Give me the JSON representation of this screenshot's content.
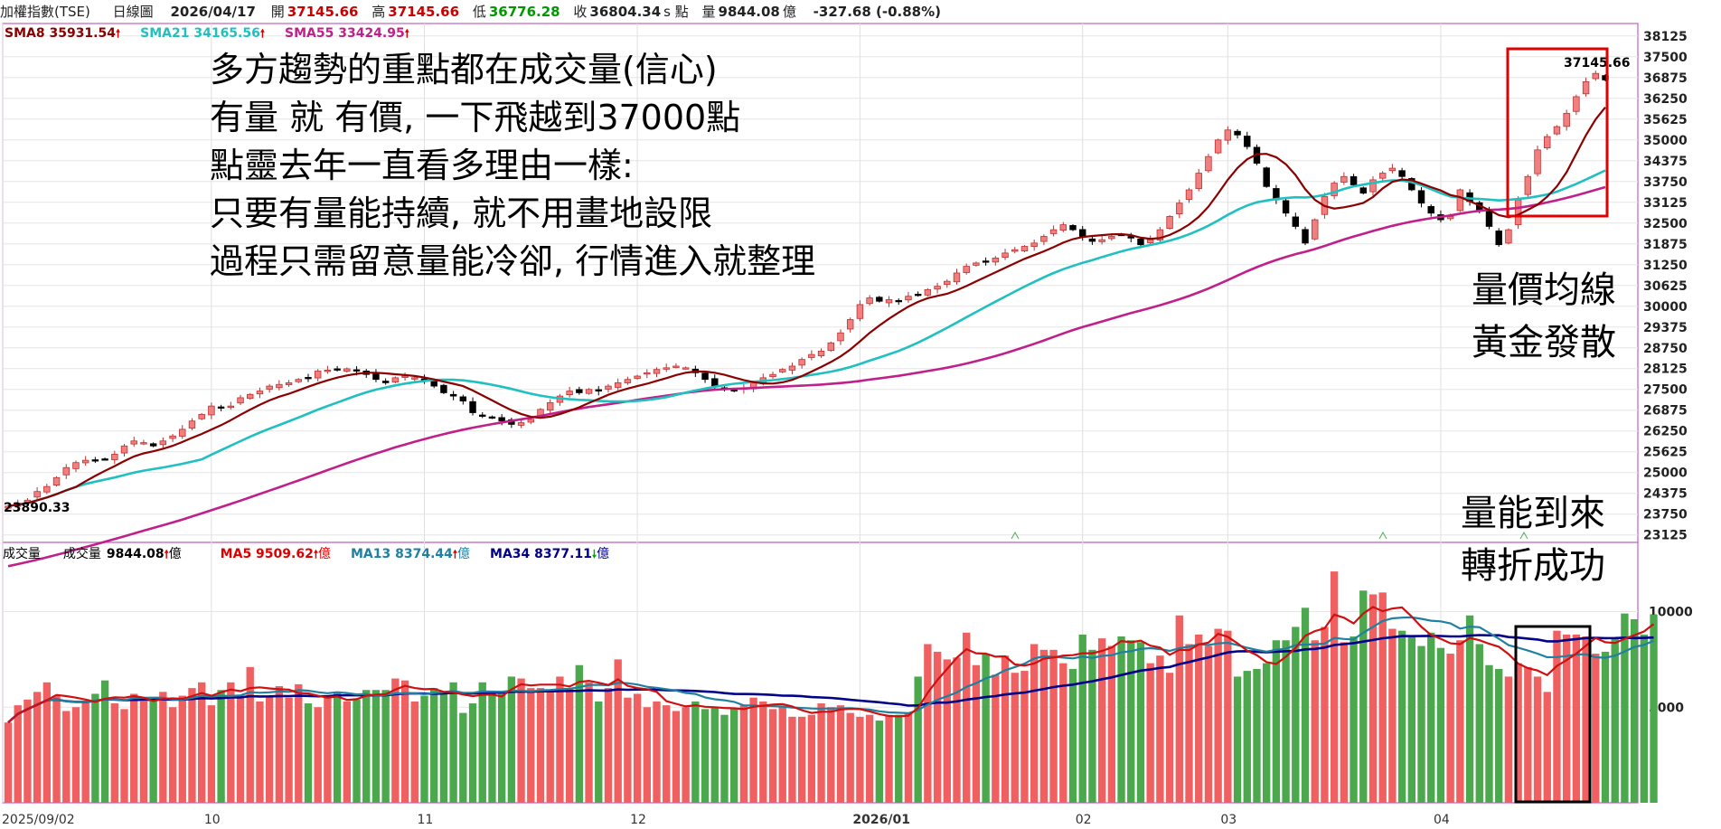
{
  "header": {
    "symbol": "加權指數(TSE)",
    "period": "日線圖",
    "date": "2026/04/17",
    "open_label": "開",
    "open": "37145.66",
    "high_label": "高",
    "high": "37145.66",
    "low_label": "低",
    "low": "36776.28",
    "close_label": "收",
    "close": "36804.34",
    "close_unit": "s 點",
    "vol_label": "量",
    "vol": "9844.08",
    "vol_unit": "億",
    "change": "-327.68 (-0.88%)"
  },
  "price_legend": [
    {
      "label": "SMA8 35931.54",
      "arrow": "up",
      "color": "#8b0000"
    },
    {
      "label": "SMA21 34165.56",
      "arrow": "up",
      "color": "#20c0c0"
    },
    {
      "label": "SMA55 33424.95",
      "arrow": "up",
      "color": "#c0208a"
    }
  ],
  "volume_legend": {
    "title": "成交量",
    "value_label": "成交量",
    "value": "9844.08",
    "value_unit": "億",
    "items": [
      {
        "label": "MA5 9509.62",
        "arrow": "up",
        "unit": "億",
        "color": "#d00"
      },
      {
        "label": "MA13 8374.44",
        "arrow": "up",
        "unit": "億",
        "color": "#2080a0"
      },
      {
        "label": "MA34 8377.11",
        "arrow": "down",
        "unit": "億",
        "color": "#00008b"
      }
    ]
  },
  "annotations": {
    "main_lines": [
      "多方趨勢的重點都在成交量(信心)",
      "有量 就 有價, 一下飛越到37000點",
      "點靈去年一直看多理由一樣:",
      "只要有量能持續, 就不用畫地設限",
      "過程只需留意量能冷卻, 行情進入就整理"
    ],
    "right_top": [
      "量價均線",
      "黃金發散"
    ],
    "right_bottom": [
      "量能到來",
      "轉折成功"
    ]
  },
  "chart_data": [
    {
      "type": "candlestick",
      "title": "加權指數(TSE) 日線圖",
      "y_ticks": [
        38125,
        37500,
        36875,
        36250,
        35625,
        35000,
        34375,
        33750,
        33125,
        32500,
        31875,
        31250,
        30625,
        30000,
        29375,
        28750,
        28125,
        27500,
        26875,
        26250,
        25625,
        25000,
        24375,
        23750,
        23125
      ],
      "ylim": [
        22900,
        38500
      ],
      "x_labels": [
        "2025/09/02",
        "10",
        "11",
        "12",
        "2026/01",
        "02",
        "03",
        "04"
      ],
      "x_label_positions": [
        0,
        21,
        43,
        65,
        88,
        111,
        126,
        148
      ],
      "low_label": "23890.33",
      "high_label": "37145.66",
      "close": [
        23990,
        24080,
        24170,
        24430,
        24580,
        24850,
        25150,
        25300,
        25370,
        25350,
        25400,
        25550,
        25800,
        25950,
        25900,
        25800,
        25950,
        26100,
        26300,
        26550,
        26750,
        27000,
        26950,
        27000,
        27250,
        27350,
        27450,
        27600,
        27650,
        27700,
        27800,
        27850,
        28050,
        28080,
        28100,
        28120,
        28050,
        27950,
        27800,
        27700,
        27850,
        27900,
        27850,
        27750,
        27600,
        27400,
        27300,
        27150,
        26800,
        26700,
        26650,
        26550,
        26450,
        26500,
        26600,
        26900,
        27100,
        27300,
        27450,
        27400,
        27500,
        27450,
        27600,
        27700,
        27800,
        27900,
        28000,
        28100,
        28150,
        28200,
        28150,
        28000,
        27800,
        27600,
        27500,
        27450,
        27550,
        27700,
        27850,
        27950,
        28100,
        28200,
        28400,
        28550,
        28650,
        28900,
        29200,
        29600,
        30050,
        30250,
        30150,
        30200,
        30150,
        30300,
        30350,
        30500,
        30600,
        30750,
        31000,
        31200,
        31300,
        31350,
        31450,
        31600,
        31700,
        31800,
        31900,
        32100,
        32300,
        32450,
        32300,
        32100,
        31950,
        32000,
        32100,
        32150,
        32050,
        31850,
        32000,
        32300,
        32700,
        33100,
        33500,
        34000,
        34500,
        35000,
        35300,
        35150,
        34800,
        34300,
        33600,
        33200,
        32800,
        32400,
        31900,
        32600,
        33300,
        33700,
        33900,
        33650,
        33400,
        33800,
        34000,
        34150,
        33900,
        33500,
        33100,
        32800,
        32600,
        32700,
        33500,
        33150,
        32900,
        32400,
        31850,
        32300,
        33200,
        33900,
        34700,
        35100,
        35400,
        35800,
        36300,
        36750,
        37000,
        36804
      ]
    },
    {
      "type": "bar",
      "title": "成交量",
      "y_ticks": [
        10000,
        5000
      ],
      "ylim": [
        0,
        12200
      ],
      "x_labels": [
        "2025/09/02",
        "10",
        "11",
        "12",
        "2026/01",
        "02",
        "03",
        "04"
      ],
      "values": [
        4200,
        5100,
        5400,
        5800,
        6300,
        5600,
        4800,
        5000,
        5300,
        5700,
        6400,
        5200,
        4900,
        5700,
        5300,
        5500,
        5800,
        5000,
        5600,
        6000,
        6300,
        5100,
        5900,
        6300,
        5600,
        7100,
        5300,
        5600,
        6100,
        5500,
        6200,
        5200,
        5000,
        5600,
        5800,
        5300,
        5400,
        5900,
        5900,
        5900,
        6500,
        6400,
        5300,
        5600,
        6000,
        5700,
        6300,
        4700,
        5200,
        6300,
        5800,
        5800,
        6600,
        6500,
        6000,
        6000,
        5800,
        6600,
        6000,
        7200,
        6300,
        5300,
        6000,
        7500,
        5500,
        5700,
        5000,
        5300,
        5100,
        4800,
        5000,
        5300,
        4900,
        5000,
        4600,
        4900,
        5100,
        5500,
        5300,
        4900,
        5000,
        4500,
        4500,
        4600,
        5200,
        5000,
        5100,
        4700,
        4500,
        4600,
        4300,
        4600,
        4600,
        4700,
        6600,
        8300,
        7900,
        7500,
        7600,
        8900,
        7200,
        7800,
        6700,
        7700,
        6800,
        6900,
        8300,
        8000,
        8000,
        7300,
        7000,
        8800,
        8000,
        8600,
        8200,
        8700,
        8500,
        8400,
        7300,
        7700,
        6800,
        9800,
        8300,
        8800,
        8200,
        9100,
        9000,
        6600,
        6900,
        7000,
        7300,
        8500,
        8500,
        9200,
        10200,
        8500,
        9200,
        12100,
        8400,
        8700,
        11100,
        10900,
        11000,
        9100,
        9000,
        8700,
        8200,
        8900,
        8100,
        7800,
        8500,
        9800,
        8300,
        7200,
        7000,
        6600,
        7300,
        7100,
        6600,
        5800,
        9000,
        8800,
        8800,
        8700,
        7800,
        7900,
        8600,
        9900,
        9600,
        8800,
        9844
      ]
    }
  ]
}
